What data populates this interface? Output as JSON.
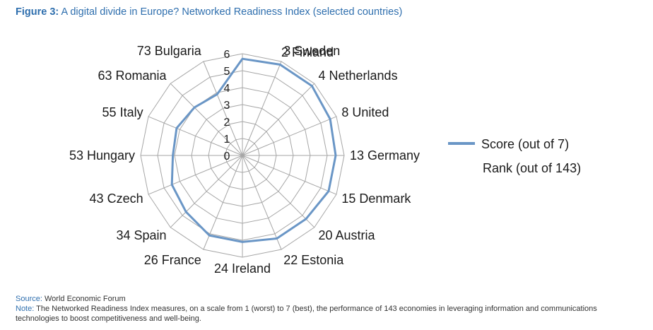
{
  "figure": {
    "label": "Figure 3:",
    "title": "A digital divide in Europe? Networked Readiness Index (selected countries)"
  },
  "chart_data": {
    "type": "radar",
    "categories": [
      "2 Finland",
      "3 Sweden",
      "4 Netherlands",
      "8 United",
      "13 Germany",
      "15 Denmark",
      "20 Austria",
      "22 Estonia",
      "24 Ireland",
      "26 France",
      "34 Spain",
      "43 Czech",
      "53 Hungary",
      "55 Italy",
      "63 Romania",
      "73 Bulgaria"
    ],
    "series": [
      {
        "name": "Score (out of 7)",
        "values": [
          5.7,
          5.8,
          5.8,
          5.6,
          5.5,
          5.5,
          5.3,
          5.3,
          5.1,
          5.1,
          4.7,
          4.5,
          4.1,
          4.2,
          4.0,
          3.9
        ]
      }
    ],
    "extra_legend": "Rank (out of 143)",
    "radial_ticks": [
      "0",
      "1",
      "2",
      "3",
      "4",
      "5",
      "6"
    ],
    "rlim": [
      0,
      6
    ],
    "series_color": "#6a96c6",
    "grid": true,
    "legend_position": "right"
  },
  "footer": {
    "source_label": "Source:",
    "source_text": "World Economic Forum",
    "note_label": "Note:",
    "note_text": "The Networked Readiness Index measures, on a scale from 1 (worst) to 7 (best), the performance of 143 economies in leveraging information and communications technologies to boost competitiveness and well-being."
  }
}
